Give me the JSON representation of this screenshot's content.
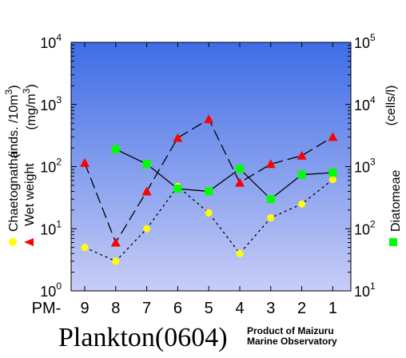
{
  "title": "Plankton(0604)",
  "credit": [
    "Product of Maizuru",
    "Marine Observatory"
  ],
  "colors": {
    "plot_top": "#3e6de6",
    "plot_bottom": "#c8cdf6",
    "wet_weight": "#ff0000",
    "chaetognatha": "#ffff00",
    "diatomeae": "#00ff00"
  },
  "left_axis": {
    "labels": [
      "(inds. /10m",
      "3",
      ")",
      "(mg/m",
      "3",
      ")"
    ],
    "ticks": [
      {
        "base": "10",
        "exp": "0"
      },
      {
        "base": "10",
        "exp": "1"
      },
      {
        "base": "10",
        "exp": "2"
      },
      {
        "base": "10",
        "exp": "3"
      },
      {
        "base": "10",
        "exp": "4"
      }
    ]
  },
  "right_axis": {
    "label": "(cells/l)",
    "ticks": [
      {
        "base": "10",
        "exp": "1"
      },
      {
        "base": "10",
        "exp": "2"
      },
      {
        "base": "10",
        "exp": "3"
      },
      {
        "base": "10",
        "exp": "4"
      },
      {
        "base": "10",
        "exp": "5"
      }
    ]
  },
  "x_axis": {
    "prefix": "PM-"
  },
  "legend": {
    "chaetognatha": "Chaetognatha",
    "wet_weight": "Wet weight",
    "diatomeae": "Diatomeae"
  },
  "chart_data": {
    "type": "line",
    "categories": [
      "9",
      "8",
      "7",
      "6",
      "5",
      "4",
      "3",
      "2",
      "1"
    ],
    "left_scale": "log",
    "right_scale": "log",
    "ylim_left": [
      1,
      10000
    ],
    "ylim_right": [
      10,
      100000
    ],
    "grid": false,
    "series": [
      {
        "name": "Wet weight",
        "axis": "left",
        "marker": "triangle",
        "line": "dashed",
        "color": "#ff0000",
        "values": [
          115,
          6,
          40,
          290,
          580,
          55,
          110,
          150,
          300
        ]
      },
      {
        "name": "Chaetognatha",
        "axis": "left",
        "marker": "circle",
        "line": "dotted",
        "color": "#ffff00",
        "values": [
          5,
          3,
          10,
          48,
          18,
          4,
          15,
          25,
          62
        ]
      },
      {
        "name": "Diatomeae",
        "axis": "right",
        "marker": "square",
        "line": "solid",
        "color": "#00ff00",
        "values": [
          null,
          1900,
          1100,
          440,
          400,
          920,
          300,
          740,
          800
        ]
      }
    ]
  }
}
